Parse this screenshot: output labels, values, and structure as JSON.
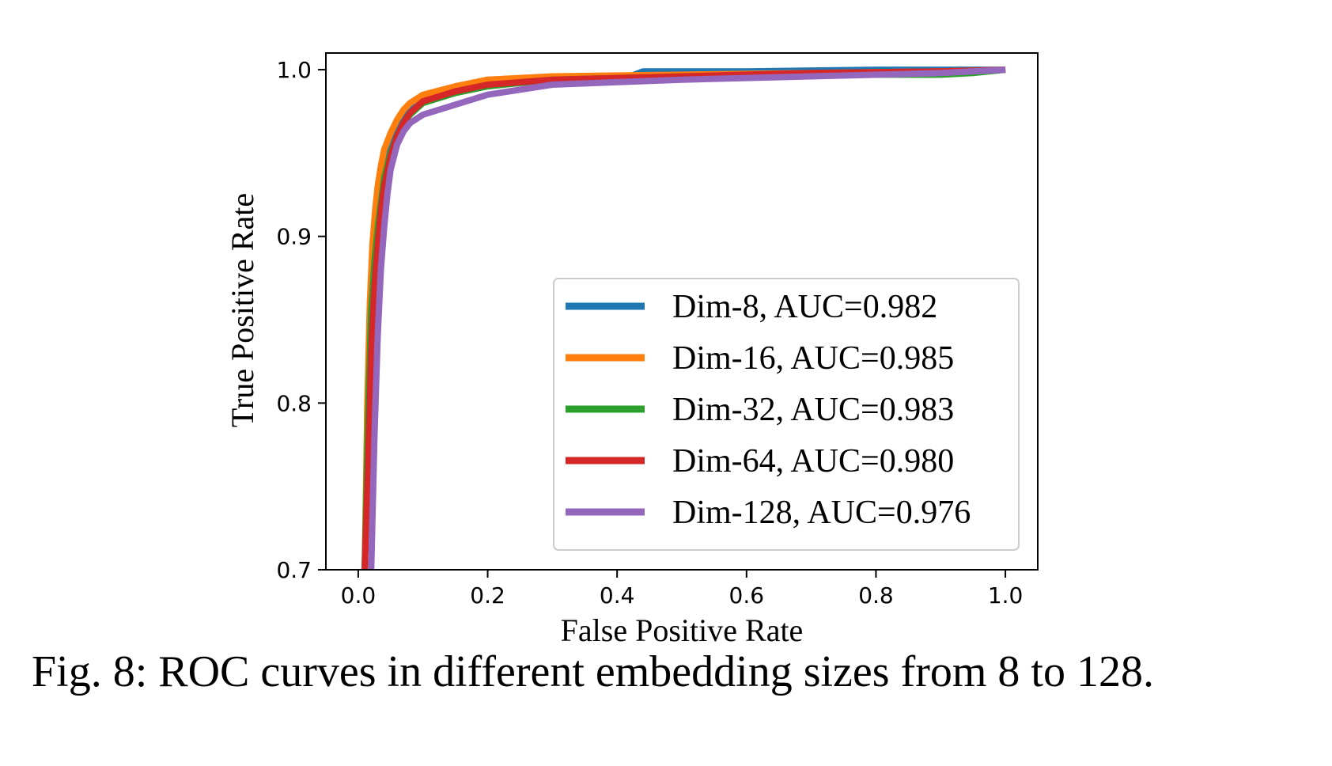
{
  "chart_data": {
    "type": "line",
    "title": "",
    "xlabel": "False Positive Rate",
    "ylabel": "True Positive Rate",
    "xlim": [
      -0.05,
      1.05
    ],
    "ylim": [
      0.7,
      1.01
    ],
    "xticks": [
      "0.0",
      "0.2",
      "0.4",
      "0.6",
      "0.8",
      "1.0"
    ],
    "yticks": [
      "0.7",
      "0.8",
      "0.9",
      "1.0"
    ],
    "grid": false,
    "legend_position": "lower-right",
    "series": [
      {
        "name": "Dim-8, AUC=0.982",
        "color": "#1f77b4",
        "x": [
          0.01,
          0.015,
          0.02,
          0.025,
          0.03,
          0.035,
          0.04,
          0.045,
          0.05,
          0.06,
          0.07,
          0.08,
          0.1,
          0.15,
          0.2,
          0.3,
          0.42,
          0.44,
          0.6,
          0.8,
          1.0
        ],
        "y": [
          0.7,
          0.78,
          0.86,
          0.9,
          0.915,
          0.93,
          0.94,
          0.95,
          0.957,
          0.966,
          0.975,
          0.978,
          0.983,
          0.988,
          0.992,
          0.995,
          0.996,
          0.999,
          0.999,
          1.0,
          1.0
        ]
      },
      {
        "name": "Dim-16, AUC=0.985",
        "color": "#ff7f0e",
        "x": [
          0.01,
          0.014,
          0.018,
          0.022,
          0.026,
          0.03,
          0.035,
          0.04,
          0.05,
          0.06,
          0.07,
          0.08,
          0.1,
          0.15,
          0.2,
          0.3,
          0.5,
          0.7,
          0.9,
          1.0
        ],
        "y": [
          0.7,
          0.8,
          0.86,
          0.895,
          0.915,
          0.93,
          0.942,
          0.952,
          0.962,
          0.97,
          0.976,
          0.98,
          0.985,
          0.99,
          0.994,
          0.996,
          0.997,
          0.998,
          0.999,
          1.0
        ]
      },
      {
        "name": "Dim-32, AUC=0.983",
        "color": "#2ca02c",
        "x": [
          0.01,
          0.015,
          0.02,
          0.025,
          0.03,
          0.035,
          0.04,
          0.05,
          0.06,
          0.07,
          0.08,
          0.1,
          0.15,
          0.2,
          0.3,
          0.5,
          0.7,
          0.9,
          0.95,
          1.0
        ],
        "y": [
          0.7,
          0.79,
          0.855,
          0.885,
          0.905,
          0.92,
          0.935,
          0.95,
          0.96,
          0.968,
          0.973,
          0.98,
          0.986,
          0.99,
          0.994,
          0.996,
          0.997,
          0.997,
          0.998,
          1.0
        ]
      },
      {
        "name": "Dim-64, AUC=0.980",
        "color": "#d62728",
        "x": [
          0.01,
          0.015,
          0.02,
          0.025,
          0.03,
          0.035,
          0.04,
          0.05,
          0.06,
          0.07,
          0.08,
          0.1,
          0.15,
          0.2,
          0.3,
          0.5,
          0.7,
          0.9,
          1.0
        ],
        "y": [
          0.7,
          0.76,
          0.83,
          0.87,
          0.895,
          0.915,
          0.93,
          0.948,
          0.96,
          0.968,
          0.974,
          0.981,
          0.987,
          0.991,
          0.994,
          0.996,
          0.998,
          0.999,
          1.0
        ]
      },
      {
        "name": "Dim-128, AUC=0.976",
        "color": "#9467bd",
        "x": [
          0.02,
          0.025,
          0.03,
          0.035,
          0.04,
          0.045,
          0.05,
          0.06,
          0.07,
          0.08,
          0.1,
          0.15,
          0.2,
          0.3,
          0.5,
          0.7,
          0.9,
          1.0
        ],
        "y": [
          0.7,
          0.78,
          0.84,
          0.88,
          0.905,
          0.925,
          0.94,
          0.955,
          0.963,
          0.968,
          0.973,
          0.979,
          0.985,
          0.991,
          0.994,
          0.996,
          0.998,
          1.0
        ]
      }
    ]
  },
  "caption": "Fig. 8: ROC curves in different embedding sizes from 8 to 128."
}
